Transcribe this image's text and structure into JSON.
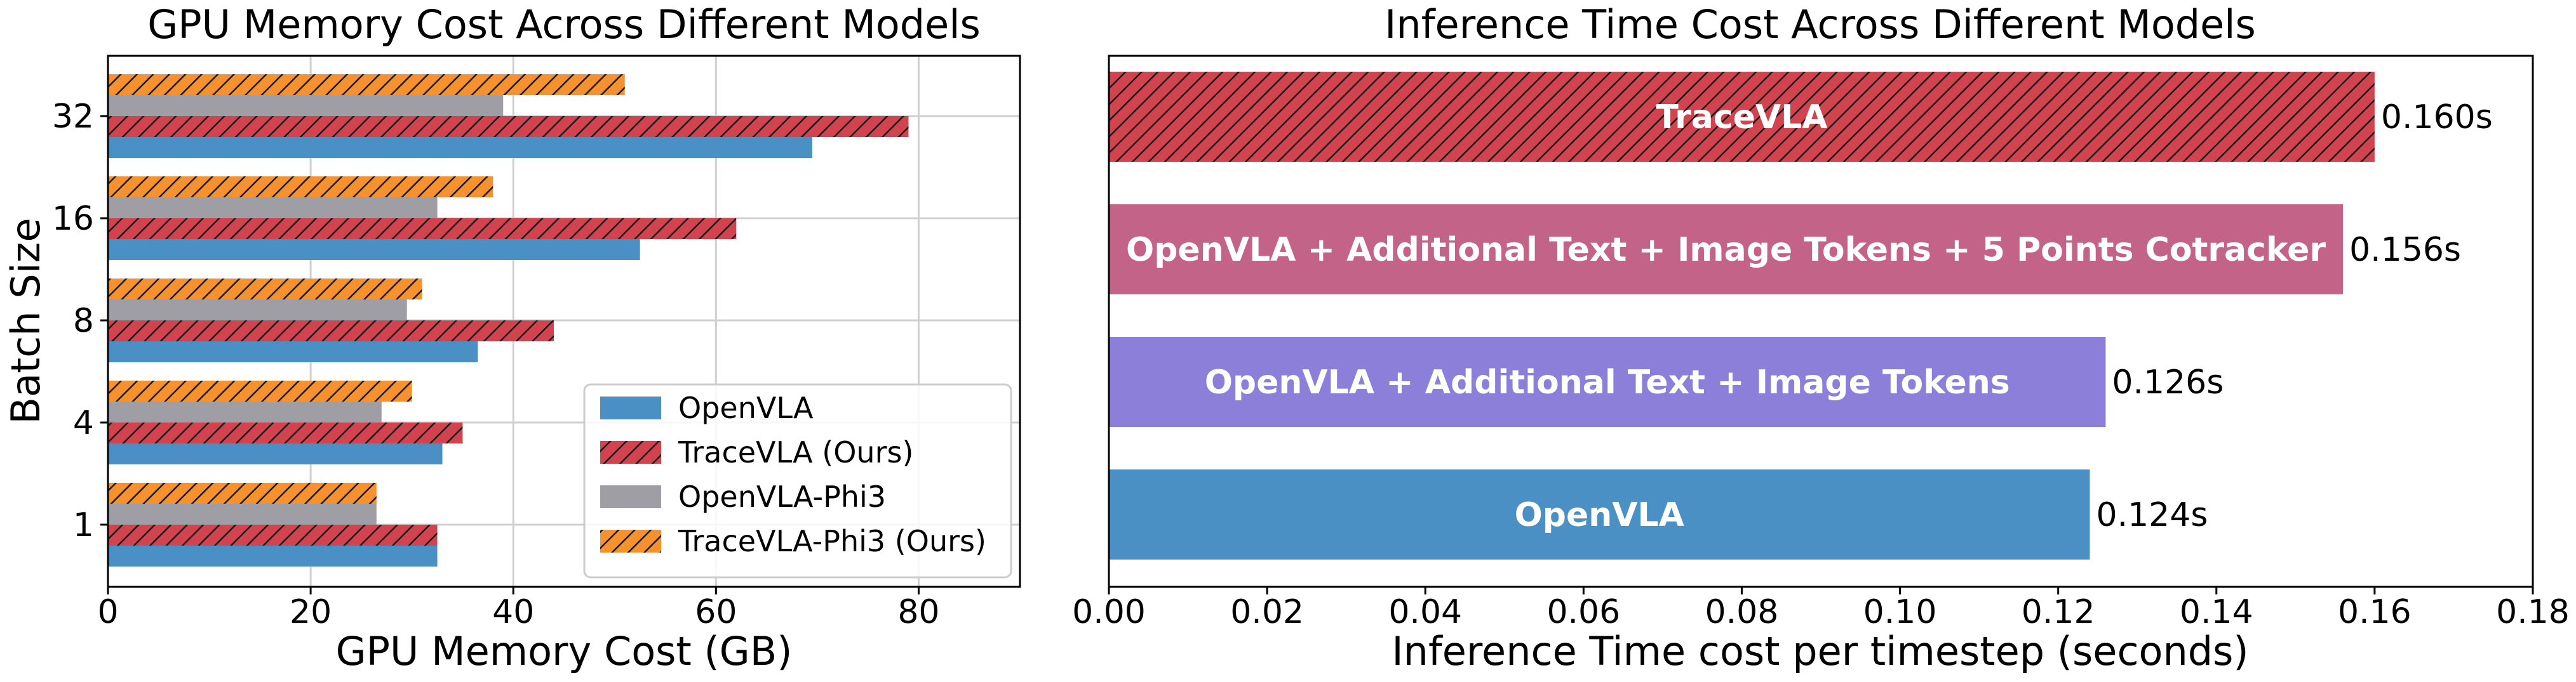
{
  "colors": {
    "openvla": "#4a90c4",
    "tracevla": "#d0434f",
    "openvla_phi3": "#9e9ea4",
    "tracevla_phi3": "#f5922f",
    "cotracker": "#c46388",
    "text_image_tokens": "#8b7fd9"
  },
  "chart_data": [
    {
      "type": "bar",
      "orientation": "horizontal",
      "title": "GPU Memory Cost Across Different Models",
      "xlabel": "GPU Memory Cost (GB)",
      "ylabel": "Batch Size",
      "xlim": [
        0,
        90
      ],
      "xticks": [
        "0",
        "20",
        "40",
        "60",
        "80"
      ],
      "categories": [
        "1",
        "4",
        "8",
        "16",
        "32"
      ],
      "grid": true,
      "legend_position": "lower-right",
      "series": [
        {
          "name": "OpenVLA",
          "values": [
            32.5,
            33,
            36.5,
            52.5,
            69.5
          ],
          "hatch": false
        },
        {
          "name": "TraceVLA (Ours)",
          "values": [
            32.5,
            35,
            44,
            62,
            79
          ],
          "hatch": true
        },
        {
          "name": "OpenVLA-Phi3",
          "values": [
            26.5,
            27,
            29.5,
            32.5,
            39
          ],
          "hatch": false
        },
        {
          "name": "TraceVLA-Phi3 (Ours)",
          "values": [
            26.5,
            30,
            31,
            38,
            51
          ],
          "hatch": true
        }
      ]
    },
    {
      "type": "bar",
      "orientation": "horizontal",
      "title": "Inference Time Cost Across Different Models",
      "xlabel": "Inference Time cost per timestep (seconds)",
      "xlim": [
        0,
        0.18
      ],
      "xticks": [
        "0.00",
        "0.02",
        "0.04",
        "0.06",
        "0.08",
        "0.10",
        "0.12",
        "0.14",
        "0.16",
        "0.18"
      ],
      "grid": false,
      "bars": [
        {
          "name": "OpenVLA",
          "value": 0.124,
          "value_label": "0.124s",
          "hatch": false
        },
        {
          "name": "OpenVLA + Additional Text + Image Tokens",
          "value": 0.126,
          "value_label": "0.126s",
          "hatch": false
        },
        {
          "name": "OpenVLA + Additional Text + Image Tokens + 5 Points Cotracker",
          "value": 0.156,
          "value_label": "0.156s",
          "hatch": false
        },
        {
          "name": "TraceVLA",
          "value": 0.16,
          "value_label": "0.160s",
          "hatch": true
        }
      ]
    }
  ]
}
